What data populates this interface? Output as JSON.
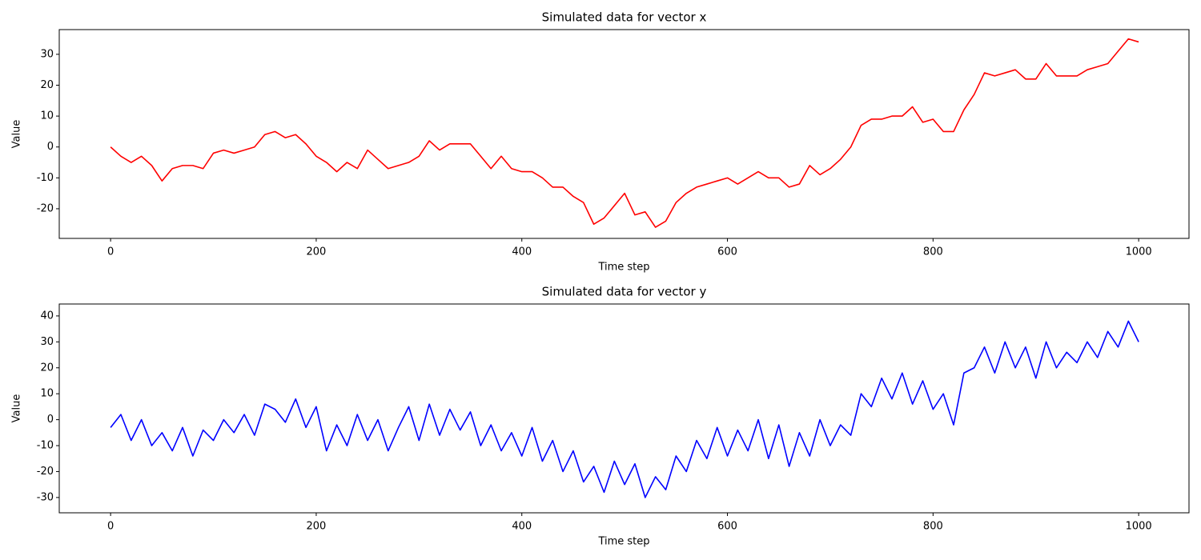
{
  "chart_data": [
    {
      "type": "line",
      "title": "Simulated data for vector x",
      "xlabel": "Time step",
      "ylabel": "Value",
      "x": [
        0,
        10,
        20,
        30,
        40,
        50,
        60,
        70,
        80,
        90,
        100,
        110,
        120,
        130,
        140,
        150,
        160,
        170,
        180,
        190,
        200,
        210,
        220,
        230,
        240,
        250,
        260,
        270,
        280,
        290,
        300,
        310,
        320,
        330,
        340,
        350,
        360,
        370,
        380,
        390,
        400,
        410,
        420,
        430,
        440,
        450,
        460,
        470,
        480,
        490,
        500,
        510,
        520,
        530,
        540,
        550,
        560,
        570,
        580,
        590,
        600,
        610,
        620,
        630,
        640,
        650,
        660,
        670,
        680,
        690,
        700,
        710,
        720,
        730,
        740,
        750,
        760,
        770,
        780,
        790,
        800,
        810,
        820,
        830,
        840,
        850,
        860,
        870,
        880,
        890,
        900,
        910,
        920,
        930,
        940,
        950,
        960,
        970,
        980,
        990,
        1000
      ],
      "series": [
        {
          "color": "#ff0000",
          "values": [
            0,
            -3,
            -5,
            -3,
            -6,
            -11,
            -7,
            -6,
            -6,
            -7,
            -2,
            -1,
            -2,
            -1,
            0,
            4,
            5,
            3,
            4,
            1,
            -3,
            -5,
            -8,
            -5,
            -7,
            -1,
            -4,
            -7,
            -6,
            -5,
            -3,
            2,
            -1,
            1,
            1,
            1,
            -3,
            -7,
            -3,
            -7,
            -8,
            -8,
            -10,
            -13,
            -13,
            -16,
            -18,
            -25,
            -23,
            -19,
            -15,
            -22,
            -21,
            -26,
            -24,
            -18,
            -15,
            -13,
            -12,
            -11,
            -10,
            -12,
            -10,
            -8,
            -10,
            -10,
            -13,
            -12,
            -6,
            -9,
            -7,
            -4,
            0,
            7,
            9,
            9,
            10,
            10,
            13,
            8,
            9,
            5,
            5,
            12,
            17,
            24,
            23,
            24,
            25,
            22,
            22,
            27,
            23,
            23,
            23,
            25,
            26,
            27,
            31,
            35,
            34
          ]
        }
      ],
      "xlim": [
        -49.95,
        1048.95
      ],
      "ylim": [
        -29.6,
        38.0
      ],
      "xticks": [
        0,
        200,
        400,
        600,
        800,
        1000
      ],
      "yticks": [
        -20,
        -10,
        0,
        10,
        20,
        30
      ]
    },
    {
      "type": "line",
      "title": "Simulated data for vector y",
      "xlabel": "Time step",
      "ylabel": "Value",
      "x": [
        0,
        10,
        20,
        30,
        40,
        50,
        60,
        70,
        80,
        90,
        100,
        110,
        120,
        130,
        140,
        150,
        160,
        170,
        180,
        190,
        200,
        210,
        220,
        230,
        240,
        250,
        260,
        270,
        280,
        290,
        300,
        310,
        320,
        330,
        340,
        350,
        360,
        370,
        380,
        390,
        400,
        410,
        420,
        430,
        440,
        450,
        460,
        470,
        480,
        490,
        500,
        510,
        520,
        530,
        540,
        550,
        560,
        570,
        580,
        590,
        600,
        610,
        620,
        630,
        640,
        650,
        660,
        670,
        680,
        690,
        700,
        710,
        720,
        730,
        740,
        750,
        760,
        770,
        780,
        790,
        800,
        810,
        820,
        830,
        840,
        850,
        860,
        870,
        880,
        890,
        900,
        910,
        920,
        930,
        940,
        950,
        960,
        970,
        980,
        990,
        1000
      ],
      "series": [
        {
          "color": "#0000ff",
          "values": [
            -3,
            2,
            -8,
            0,
            -10,
            -5,
            -12,
            -3,
            -14,
            -4,
            -8,
            0,
            -5,
            2,
            -6,
            6,
            4,
            -1,
            8,
            -3,
            5,
            -12,
            -2,
            -10,
            2,
            -8,
            0,
            -12,
            -3,
            5,
            -8,
            6,
            -6,
            4,
            -4,
            3,
            -10,
            -2,
            -12,
            -5,
            -14,
            -3,
            -16,
            -8,
            -20,
            -12,
            -24,
            -18,
            -28,
            -16,
            -25,
            -17,
            -30,
            -22,
            -27,
            -14,
            -20,
            -8,
            -15,
            -3,
            -14,
            -4,
            -12,
            0,
            -15,
            -2,
            -18,
            -5,
            -14,
            0,
            -10,
            -2,
            -6,
            10,
            5,
            16,
            8,
            18,
            6,
            15,
            4,
            10,
            -2,
            18,
            20,
            28,
            18,
            30,
            20,
            28,
            16,
            30,
            20,
            26,
            22,
            30,
            24,
            34,
            28,
            38,
            30
          ]
        }
      ],
      "xlim": [
        -49.95,
        1048.95
      ],
      "ylim": [
        -35.9,
        44.6
      ],
      "xticks": [
        0,
        200,
        400,
        600,
        800,
        1000
      ],
      "yticks": [
        -30,
        -20,
        -10,
        0,
        10,
        20,
        30,
        40
      ]
    }
  ]
}
